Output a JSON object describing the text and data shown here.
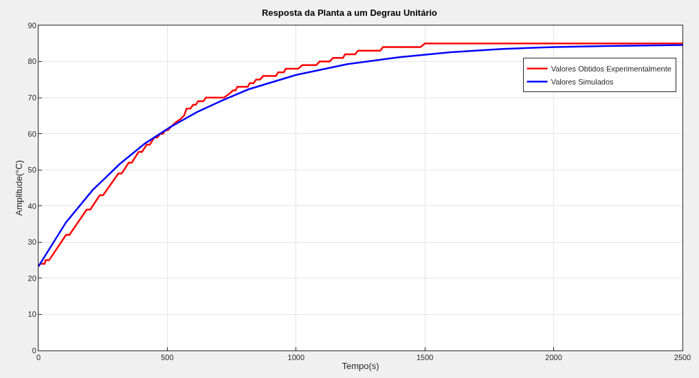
{
  "chart_data": {
    "type": "line",
    "title": "Resposta da Planta a um Degrau Unitário",
    "xlabel": "Tempo(s)",
    "ylabel": "Amplitude(°C)",
    "series": [
      {
        "name": "Valores Obtidos Experimentalmente",
        "color": "#ff0000",
        "x": [
          0,
          6,
          24,
          28,
          41,
          107,
          120,
          187,
          201,
          238,
          251,
          310,
          323,
          350,
          362,
          389,
          402,
          420,
          432,
          450,
          461,
          473,
          483,
          492,
          502,
          515,
          530,
          550,
          565,
          575,
          590,
          600,
          610,
          620,
          640,
          650,
          720,
          740,
          755,
          765,
          772,
          812,
          820,
          835,
          845,
          860,
          872,
          922,
          930,
          952,
          960,
          1008,
          1024,
          1078,
          1091,
          1130,
          1143,
          1182,
          1190,
          1229,
          1240,
          1327,
          1337,
          1483,
          1500,
          2500
        ],
        "values": [
          23.3,
          24,
          24,
          25,
          25,
          32,
          32,
          39,
          39,
          43,
          43,
          49,
          49,
          52,
          52,
          55,
          55,
          57,
          57,
          59,
          59,
          60,
          60,
          61,
          61,
          62,
          63,
          64,
          65,
          67,
          67,
          68,
          68,
          69,
          69,
          70,
          70,
          71,
          72,
          72,
          73,
          73,
          74,
          74,
          75,
          75,
          76,
          76,
          77,
          77,
          78,
          78,
          79,
          79,
          80,
          80,
          81,
          81,
          82,
          82,
          83,
          83,
          84,
          84,
          85,
          85
        ]
      },
      {
        "name": "Valores Simulados",
        "color": "#0000ff",
        "x": [
          0,
          107,
          210,
          315,
          413,
          515,
          615,
          715,
          815,
          1000,
          1200,
          1400,
          1600,
          1800,
          2000,
          2200,
          2500
        ],
        "values": [
          23.3,
          35.5,
          44.4,
          51.6,
          57.3,
          62,
          66,
          69.3,
          72.3,
          76.3,
          79.3,
          81.2,
          82.6,
          83.5,
          84,
          84.3,
          84.6
        ]
      }
    ],
    "xlim": [
      0,
      2500
    ],
    "xticks": [
      0,
      500,
      1000,
      1500,
      2000,
      2500
    ],
    "ylim": [
      0,
      90
    ],
    "yticks": [
      0,
      10,
      20,
      30,
      40,
      50,
      60,
      70,
      80,
      90
    ],
    "grid": true,
    "legend": "top right",
    "marker": "none",
    "line_style": "solid"
  }
}
